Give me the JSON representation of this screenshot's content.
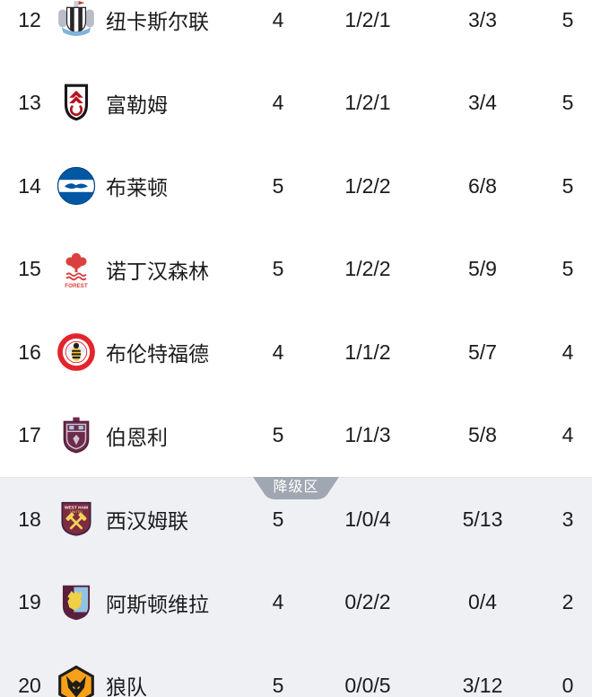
{
  "relegation": {
    "label": "降级区"
  },
  "colors": {
    "relegation_bg": "#eff0f4",
    "badge": "#a0a7b2",
    "text": "#1b1b1d"
  },
  "rows": [
    {
      "rank": "12",
      "team": "纽卡斯尔联",
      "logo": "newcastle",
      "played": "4",
      "wdl": "1/2/1",
      "goals": "3/3",
      "points": "5",
      "zone": "main"
    },
    {
      "rank": "13",
      "team": "富勒姆",
      "logo": "fulham",
      "played": "4",
      "wdl": "1/2/1",
      "goals": "3/4",
      "points": "5",
      "zone": "main"
    },
    {
      "rank": "14",
      "team": "布莱顿",
      "logo": "brighton",
      "played": "5",
      "wdl": "1/2/2",
      "goals": "6/8",
      "points": "5",
      "zone": "main"
    },
    {
      "rank": "15",
      "team": "诺丁汉森林",
      "logo": "forest",
      "played": "5",
      "wdl": "1/2/2",
      "goals": "5/9",
      "points": "5",
      "zone": "main"
    },
    {
      "rank": "16",
      "team": "布伦特福德",
      "logo": "brentford",
      "played": "4",
      "wdl": "1/1/2",
      "goals": "5/7",
      "points": "4",
      "zone": "main"
    },
    {
      "rank": "17",
      "team": "伯恩利",
      "logo": "burnley",
      "played": "5",
      "wdl": "1/1/3",
      "goals": "5/8",
      "points": "4",
      "zone": "main"
    },
    {
      "rank": "18",
      "team": "西汉姆联",
      "logo": "westham",
      "played": "5",
      "wdl": "1/0/4",
      "goals": "5/13",
      "points": "3",
      "zone": "relegation"
    },
    {
      "rank": "19",
      "team": "阿斯顿维拉",
      "logo": "astonvilla",
      "played": "4",
      "wdl": "0/2/2",
      "goals": "0/4",
      "points": "2",
      "zone": "relegation"
    },
    {
      "rank": "20",
      "team": "狼队",
      "logo": "wolves",
      "played": "5",
      "wdl": "0/0/5",
      "goals": "3/12",
      "points": "0",
      "zone": "relegation"
    }
  ]
}
